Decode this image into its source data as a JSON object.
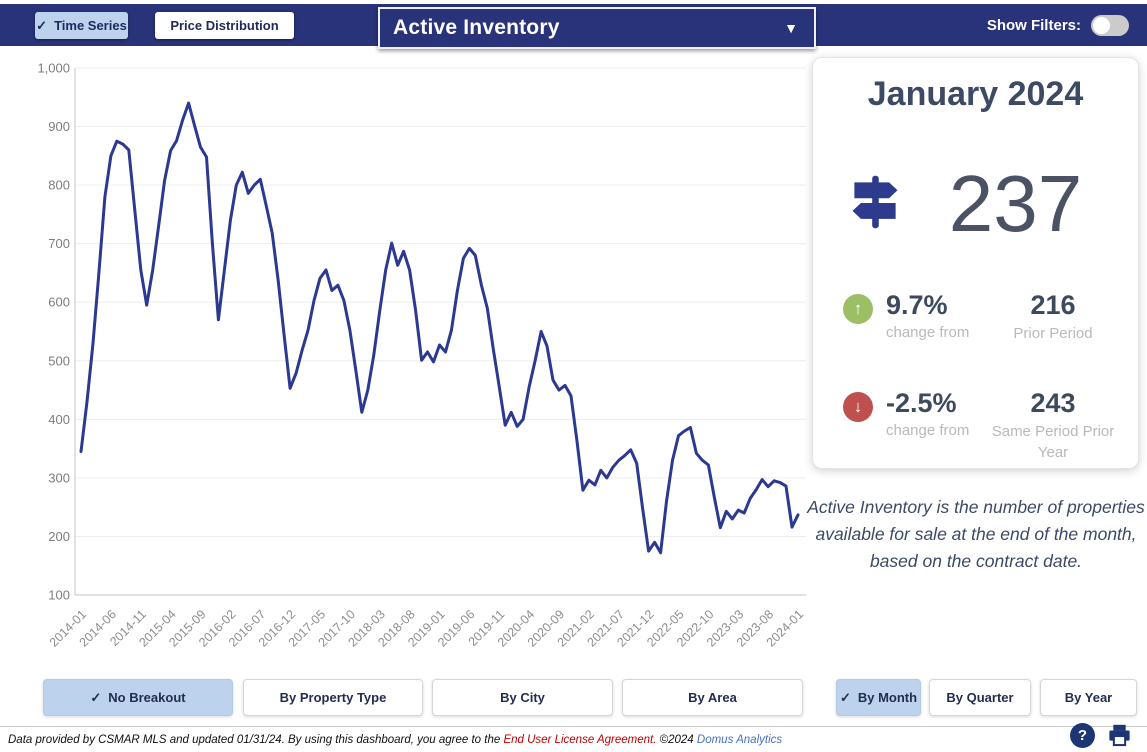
{
  "header": {
    "tabs": [
      {
        "label": "Time Series",
        "selected": true
      },
      {
        "label": "Price Distribution",
        "selected": false
      }
    ],
    "metric_dropdown": {
      "value": "Active Inventory"
    },
    "show_filters_label": "Show Filters:",
    "show_filters_on": false
  },
  "icons": {
    "check": "✓",
    "caret_down": "▼",
    "arrow_up": "↑",
    "arrow_down": "↓",
    "question": "?"
  },
  "summary_card": {
    "period_label": "January 2024",
    "current_value": "237",
    "comparisons": [
      {
        "direction": "up",
        "pct": "9.7%",
        "caption": "change from",
        "value": "216",
        "label": "Prior Period"
      },
      {
        "direction": "down",
        "pct": "-2.5%",
        "caption": "change from",
        "value": "243",
        "label": "Same Period Prior Year"
      }
    ]
  },
  "description": "Active Inventory is the number of properties available for sale at the end of the month, based on the contract date.",
  "breakout_buttons": [
    {
      "label": "No Breakout",
      "selected": true
    },
    {
      "label": "By Property Type",
      "selected": false
    },
    {
      "label": "By City",
      "selected": false
    },
    {
      "label": "By Area",
      "selected": false
    }
  ],
  "period_buttons": [
    {
      "label": "By Month",
      "selected": true
    },
    {
      "label": "By Quarter",
      "selected": false
    },
    {
      "label": "By Year",
      "selected": false
    }
  ],
  "footer": {
    "text_1": "Data provided by CSMAR MLS and updated 01/31/24.  By using this dashboard, you agree to the ",
    "eula_link": "End User License Agreement.",
    "text_2": " ©2024 ",
    "brand_link": "Domus Analytics"
  },
  "colors": {
    "navy_bar": "#293379",
    "line": "#2b3990",
    "selected_button_bg": "#bcd2ed",
    "green_badge": "#9cbf63",
    "red_badge": "#c0504d",
    "accent_text": "#3d4a63"
  },
  "chart_data": {
    "type": "line",
    "title": "",
    "xlabel": "",
    "ylabel": "",
    "series_name": "Active Inventory",
    "ylim": [
      100,
      1000
    ],
    "y_ticks": [
      "100",
      "200",
      "300",
      "400",
      "500",
      "600",
      "700",
      "800",
      "900",
      "1,000"
    ],
    "x_tick_every": 5,
    "grid": "horizontal",
    "line_color": "#2b3990",
    "x": [
      "2014-01",
      "2014-02",
      "2014-03",
      "2014-04",
      "2014-05",
      "2014-06",
      "2014-07",
      "2014-08",
      "2014-09",
      "2014-10",
      "2014-11",
      "2014-12",
      "2015-01",
      "2015-02",
      "2015-03",
      "2015-04",
      "2015-05",
      "2015-06",
      "2015-07",
      "2015-08",
      "2015-09",
      "2015-10",
      "2015-11",
      "2015-12",
      "2016-01",
      "2016-02",
      "2016-03",
      "2016-04",
      "2016-05",
      "2016-06",
      "2016-07",
      "2016-08",
      "2016-09",
      "2016-10",
      "2016-11",
      "2016-12",
      "2017-01",
      "2017-02",
      "2017-03",
      "2017-04",
      "2017-05",
      "2017-06",
      "2017-07",
      "2017-08",
      "2017-09",
      "2017-10",
      "2017-11",
      "2017-12",
      "2018-01",
      "2018-02",
      "2018-03",
      "2018-04",
      "2018-05",
      "2018-06",
      "2018-07",
      "2018-08",
      "2018-09",
      "2018-10",
      "2018-11",
      "2018-12",
      "2019-01",
      "2019-02",
      "2019-03",
      "2019-04",
      "2019-05",
      "2019-06",
      "2019-07",
      "2019-08",
      "2019-09",
      "2019-10",
      "2019-11",
      "2019-12",
      "2020-01",
      "2020-02",
      "2020-03",
      "2020-04",
      "2020-05",
      "2020-06",
      "2020-07",
      "2020-08",
      "2020-09",
      "2020-10",
      "2020-11",
      "2020-12",
      "2021-01",
      "2021-02",
      "2021-03",
      "2021-04",
      "2021-05",
      "2021-06",
      "2021-07",
      "2021-08",
      "2021-09",
      "2021-10",
      "2021-11",
      "2021-12",
      "2022-01",
      "2022-02",
      "2022-03",
      "2022-04",
      "2022-05",
      "2022-06",
      "2022-07",
      "2022-08",
      "2022-09",
      "2022-10",
      "2022-11",
      "2022-12",
      "2023-01",
      "2023-02",
      "2023-03",
      "2023-04",
      "2023-05",
      "2023-06",
      "2023-07",
      "2023-08",
      "2023-09",
      "2023-10",
      "2023-11",
      "2023-12",
      "2024-01"
    ],
    "values": [
      345,
      430,
      530,
      650,
      780,
      850,
      875,
      870,
      860,
      757,
      655,
      595,
      655,
      731,
      808,
      859,
      876,
      911,
      940,
      902,
      865,
      848,
      700,
      570,
      655,
      740,
      800,
      822,
      786,
      800,
      810,
      765,
      718,
      637,
      544,
      453,
      479,
      518,
      552,
      603,
      641,
      655,
      620,
      629,
      603,
      552,
      484,
      412,
      450,
      510,
      586,
      655,
      701,
      663,
      687,
      655,
      586,
      501,
      515,
      498,
      527,
      515,
      552,
      620,
      675,
      692,
      680,
      630,
      590,
      520,
      455,
      390,
      412,
      388,
      400,
      455,
      500,
      550,
      525,
      467,
      450,
      458,
      440,
      364,
      279,
      296,
      288,
      313,
      300,
      318,
      330,
      338,
      348,
      325,
      248,
      175,
      190,
      172,
      260,
      330,
      372,
      380,
      386,
      342,
      330,
      322,
      267,
      215,
      243,
      230,
      245,
      240,
      265,
      280,
      297,
      285,
      295,
      292,
      286,
      216,
      237
    ]
  }
}
